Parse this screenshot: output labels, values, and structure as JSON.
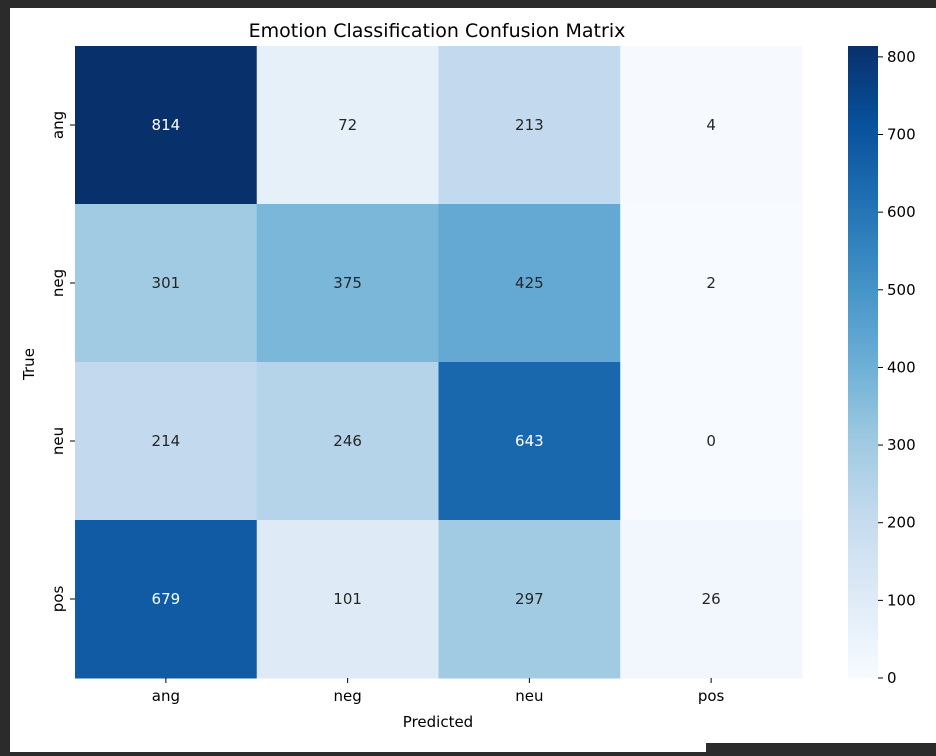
{
  "chart_data": {
    "type": "heatmap",
    "title": "Emotion Classification Confusion Matrix",
    "xlabel": "Predicted",
    "ylabel": "True",
    "x_categories": [
      "ang",
      "neg",
      "neu",
      "pos"
    ],
    "y_categories": [
      "ang",
      "neg",
      "neu",
      "pos"
    ],
    "values": [
      [
        814,
        72,
        213,
        4
      ],
      [
        301,
        375,
        425,
        2
      ],
      [
        214,
        246,
        643,
        0
      ],
      [
        679,
        101,
        297,
        26
      ]
    ],
    "colorbar": {
      "range": [
        0,
        814
      ],
      "ticks": [
        0,
        100,
        200,
        300,
        400,
        500,
        600,
        700,
        800
      ],
      "colormap": "Blues"
    }
  }
}
